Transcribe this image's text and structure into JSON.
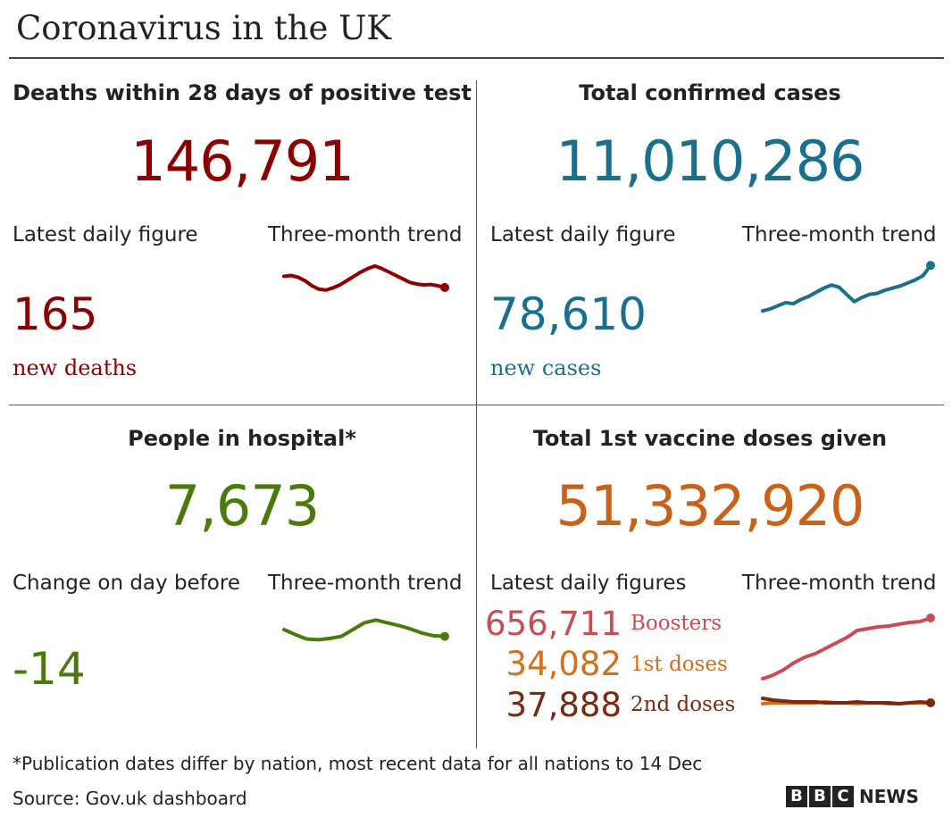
{
  "title": "Coronavirus in the UK",
  "colors": {
    "deaths": "#8b0000",
    "cases": "#1a6f8c",
    "hospital": "#4a7a0c",
    "vaccine": "#c8611a",
    "boosters": "#c94b54",
    "first_doses": "#d4701c",
    "second_doses": "#7a2810",
    "text": "#222222"
  },
  "deaths": {
    "heading": "Deaths within 28 days of positive test",
    "total": "146,791",
    "daily_label": "Latest daily figure",
    "trend_label": "Three-month trend",
    "daily_value": "165",
    "daily_unit": "new deaths"
  },
  "cases": {
    "heading": "Total confirmed cases",
    "total": "11,010,286",
    "daily_label": "Latest daily figure",
    "trend_label": "Three-month trend",
    "daily_value": "78,610",
    "daily_unit": "new cases"
  },
  "hospital": {
    "heading": "People in hospital*",
    "total": "7,673",
    "daily_label": "Change on day before",
    "trend_label": "Three-month trend",
    "daily_value": "-14"
  },
  "vaccine": {
    "heading": "Total 1st vaccine doses given",
    "total": "51,332,920",
    "daily_label": "Latest daily figures",
    "trend_label": "Three-month trend",
    "boosters_value": "656,711",
    "boosters_label": "Boosters",
    "first_value": "34,082",
    "first_label": "1st doses",
    "second_value": "37,888",
    "second_label": "2nd doses"
  },
  "footnote": "*Publication dates differ by nation, most recent data for all nations to 14 Dec",
  "source": "Source: Gov.uk dashboard",
  "brand": {
    "letters": [
      "B",
      "B",
      "C"
    ],
    "news": "NEWS"
  },
  "chart_data": [
    {
      "type": "line",
      "title": "Deaths within 28 days of positive test - Three-month trend",
      "ylim": [
        0,
        1
      ],
      "series": [
        {
          "name": "Deaths",
          "values": [
            0.72,
            0.74,
            0.7,
            0.62,
            0.5,
            0.42,
            0.4,
            0.45,
            0.52,
            0.62,
            0.72,
            0.82,
            0.9,
            0.96,
            0.9,
            0.82,
            0.74,
            0.66,
            0.58,
            0.54,
            0.52,
            0.53,
            0.5,
            0.46
          ]
        }
      ]
    },
    {
      "type": "line",
      "title": "Total confirmed cases - Three-month trend",
      "ylim": [
        0,
        1
      ],
      "series": [
        {
          "name": "Cases",
          "values": [
            0.1,
            0.14,
            0.2,
            0.26,
            0.24,
            0.32,
            0.38,
            0.46,
            0.54,
            0.6,
            0.56,
            0.42,
            0.28,
            0.36,
            0.42,
            0.44,
            0.5,
            0.54,
            0.58,
            0.64,
            0.7,
            0.78,
            0.98
          ]
        }
      ]
    },
    {
      "type": "line",
      "title": "People in hospital - Three-month trend",
      "ylim": [
        0,
        1
      ],
      "series": [
        {
          "name": "Hospital",
          "values": [
            0.5,
            0.35,
            0.22,
            0.2,
            0.24,
            0.3,
            0.5,
            0.7,
            0.78,
            0.7,
            0.62,
            0.52,
            0.4,
            0.32,
            0.3
          ]
        }
      ]
    },
    {
      "type": "line",
      "title": "Vaccine doses - Three-month trend",
      "ylim": [
        0,
        1
      ],
      "series": [
        {
          "name": "Boosters",
          "values": [
            0.32,
            0.36,
            0.42,
            0.5,
            0.56,
            0.6,
            0.66,
            0.72,
            0.78,
            0.86,
            0.88,
            0.9,
            0.91,
            0.93,
            0.95,
            0.96,
            1.0
          ]
        },
        {
          "name": "1st doses",
          "values": [
            0.04,
            0.05,
            0.05,
            0.05,
            0.05,
            0.05,
            0.06,
            0.05,
            0.05,
            0.04,
            0.05,
            0.05,
            0.04,
            0.04,
            0.05,
            0.05,
            0.05
          ]
        },
        {
          "name": "2nd doses",
          "values": [
            0.1,
            0.08,
            0.07,
            0.06,
            0.06,
            0.06,
            0.05,
            0.05,
            0.05,
            0.06,
            0.05,
            0.05,
            0.05,
            0.04,
            0.05,
            0.06,
            0.05
          ]
        }
      ]
    }
  ]
}
